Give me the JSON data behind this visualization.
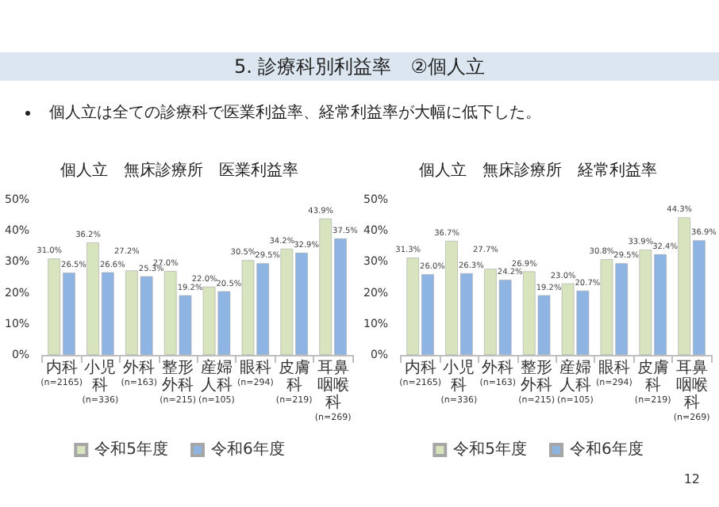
{
  "chart_data": [
    {
      "type": "bar",
      "title": "個人立　無床診療所　医業利益率",
      "annotations": [
        "5. 診療科別利益率　②個人立",
        "個人立は全ての診療科で医業利益率、経常利益率が大幅に低下した。",
        "12"
      ],
      "categories": [
        "内科(n=2165)",
        "小児科(n=336)",
        "外科(n=163)",
        "整形外科(n=215)",
        "産婦人科(n=105)",
        "眼科(n=294)",
        "皮膚科(n=219)",
        "耳鼻咽喉科(n=269)"
      ],
      "series": [
        {
          "name": "令和5年度",
          "color": "#d7e4bd",
          "values": [
            31.0,
            36.2,
            27.2,
            27.0,
            22.0,
            30.5,
            34.2,
            43.9
          ],
          "value_labels": [
            "31.0%",
            "36.2%",
            "27.2%",
            "27.0%",
            "22.0%",
            "30.5%",
            "34.2%",
            "43.9%"
          ]
        },
        {
          "name": "令和6年度",
          "color": "#8eb4e3",
          "values": [
            26.5,
            26.6,
            25.3,
            19.2,
            20.5,
            29.5,
            32.9,
            37.5
          ],
          "value_labels": [
            "26.5%",
            "26.6%",
            "25.3%",
            "19.2%",
            "20.5%",
            "29.5%",
            "32.9%",
            "37.5%"
          ]
        }
      ],
      "ylim": [
        0,
        50
      ],
      "yticks": [
        {
          "value": 0,
          "label": "0%"
        },
        {
          "value": 10,
          "label": "10%"
        },
        {
          "value": 20,
          "label": "20%"
        },
        {
          "value": 30,
          "label": "30%"
        },
        {
          "value": 40,
          "label": "40%"
        },
        {
          "value": 50,
          "label": "50%"
        }
      ],
      "grid": false,
      "legend": "bottom"
    },
    {
      "type": "bar",
      "title": "個人立　無床診療所　経常利益率",
      "categories": [
        "内科(n=2165)",
        "小児科(n=336)",
        "外科(n=163)",
        "整形外科(n=215)",
        "産婦人科(n=105)",
        "眼科(n=294)",
        "皮膚科(n=219)",
        "耳鼻咽喉科(n=269)"
      ],
      "series": [
        {
          "name": "令和5年度",
          "color": "#d7e4bd",
          "values": [
            31.3,
            36.7,
            27.7,
            26.9,
            23.0,
            30.8,
            33.9,
            44.3
          ],
          "value_labels": [
            "31.3%",
            "36.7%",
            "27.7%",
            "26.9%",
            "23.0%",
            "30.8%",
            "33.9%",
            "44.3%"
          ]
        },
        {
          "name": "令和6年度",
          "color": "#8eb4e3",
          "values": [
            26.0,
            26.3,
            24.2,
            19.2,
            20.7,
            29.5,
            32.4,
            36.9
          ],
          "value_labels": [
            "26.0%",
            "26.3%",
            "24.2%",
            "19.2%",
            "20.7%",
            "29.5%",
            "32.4%",
            "36.9%"
          ]
        }
      ],
      "ylim": [
        0,
        50
      ],
      "yticks": [
        {
          "value": 0,
          "label": "0%"
        },
        {
          "value": 10,
          "label": "10%"
        },
        {
          "value": 20,
          "label": "20%"
        },
        {
          "value": 30,
          "label": "30%"
        },
        {
          "value": 40,
          "label": "40%"
        },
        {
          "value": 50,
          "label": "50%"
        }
      ],
      "grid": false,
      "legend": "bottom"
    }
  ]
}
